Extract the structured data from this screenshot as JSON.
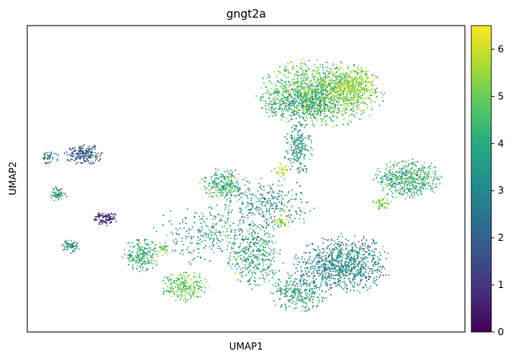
{
  "chart_data": {
    "type": "scatter",
    "title": "gngt2a",
    "xlabel": "UMAP1",
    "ylabel": "UMAP2",
    "grid": false,
    "colorbar": {
      "label": "",
      "min": 0,
      "max": 6.5,
      "ticks": [
        0,
        1,
        2,
        3,
        4,
        5,
        6
      ],
      "colormap": "viridis",
      "location": "right"
    },
    "xlim": [
      0,
      100
    ],
    "ylim": [
      0,
      100
    ],
    "clusters": [
      {
        "cx": 67,
        "cy": 78,
        "rx": 13,
        "ry": 10,
        "n": 1500,
        "value": 4.8
      },
      {
        "cx": 74,
        "cy": 80,
        "rx": 6,
        "ry": 6,
        "n": 350,
        "value": 5.6
      },
      {
        "cx": 62,
        "cy": 74,
        "rx": 8,
        "ry": 5,
        "n": 300,
        "value": 3.6
      },
      {
        "cx": 62,
        "cy": 60,
        "rx": 3,
        "ry": 8,
        "n": 220,
        "value": 3.4
      },
      {
        "cx": 87,
        "cy": 50,
        "rx": 7,
        "ry": 6,
        "n": 520,
        "value": 4.0
      },
      {
        "cx": 81,
        "cy": 42,
        "rx": 2,
        "ry": 2,
        "n": 50,
        "value": 5.2
      },
      {
        "cx": 72,
        "cy": 22,
        "rx": 10,
        "ry": 9,
        "n": 900,
        "value": 3.0
      },
      {
        "cx": 62,
        "cy": 13,
        "rx": 6,
        "ry": 6,
        "n": 300,
        "value": 3.6
      },
      {
        "cx": 52,
        "cy": 25,
        "rx": 6,
        "ry": 10,
        "n": 350,
        "value": 3.8
      },
      {
        "cx": 45,
        "cy": 48,
        "rx": 5,
        "ry": 5,
        "n": 260,
        "value": 4.2
      },
      {
        "cx": 36,
        "cy": 15,
        "rx": 5,
        "ry": 5,
        "n": 260,
        "value": 4.8
      },
      {
        "cx": 26,
        "cy": 25,
        "rx": 4,
        "ry": 5,
        "n": 230,
        "value": 4.0
      },
      {
        "cx": 13,
        "cy": 58,
        "rx": 4,
        "ry": 3,
        "n": 200,
        "value": 1.9
      },
      {
        "cx": 18,
        "cy": 37,
        "rx": 2.5,
        "ry": 2,
        "n": 100,
        "value": 1.0
      },
      {
        "cx": 10,
        "cy": 28,
        "rx": 2,
        "ry": 2,
        "n": 70,
        "value": 3.1
      },
      {
        "cx": 7,
        "cy": 45,
        "rx": 2,
        "ry": 2,
        "n": 70,
        "value": 3.4
      },
      {
        "cx": 5,
        "cy": 57,
        "rx": 2,
        "ry": 2,
        "n": 50,
        "value": 2.7
      },
      {
        "cx": 42,
        "cy": 32,
        "rx": 12,
        "ry": 10,
        "n": 300,
        "value": 3.5
      },
      {
        "cx": 55,
        "cy": 42,
        "rx": 10,
        "ry": 8,
        "n": 300,
        "value": 3.3
      },
      {
        "cx": 31,
        "cy": 27,
        "rx": 2,
        "ry": 2,
        "n": 40,
        "value": 5.5
      },
      {
        "cx": 58,
        "cy": 53,
        "rx": 2,
        "ry": 2,
        "n": 40,
        "value": 5.8
      },
      {
        "cx": 58,
        "cy": 36,
        "rx": 2,
        "ry": 2,
        "n": 40,
        "value": 5.4
      }
    ]
  }
}
